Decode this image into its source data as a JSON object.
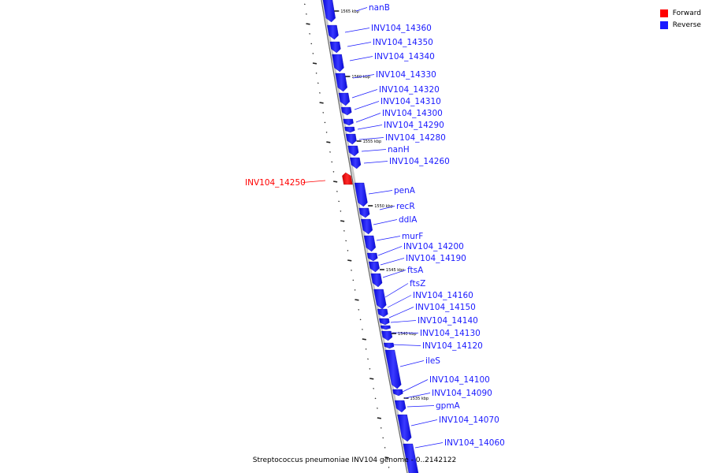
{
  "colors": {
    "forward": "#ff0000",
    "reverse": "#1a1aff",
    "backbone": "#8a8a8a"
  },
  "legend": [
    {
      "label": "Forward",
      "color": "#ff0000"
    },
    {
      "label": "Reverse",
      "color": "#1a1aff"
    }
  ],
  "caption": "Streptococcus pneumoniae INV104 genome - 0..2142122",
  "scale_ticks": [
    {
      "label": "1565 kbp"
    },
    {
      "label": "1560 kbp"
    },
    {
      "label": "1555 kbp"
    },
    {
      "label": "1550 kbp"
    },
    {
      "label": "1545 kbp"
    },
    {
      "label": "1540 kbp"
    },
    {
      "label": "1535 kbp"
    }
  ],
  "genes": [
    {
      "name": "nanB",
      "strand": "reverse"
    },
    {
      "name": "INV104_14360",
      "strand": "reverse"
    },
    {
      "name": "INV104_14350",
      "strand": "reverse"
    },
    {
      "name": "INV104_14340",
      "strand": "reverse"
    },
    {
      "name": "INV104_14330",
      "strand": "reverse"
    },
    {
      "name": "INV104_14320",
      "strand": "reverse"
    },
    {
      "name": "INV104_14310",
      "strand": "reverse"
    },
    {
      "name": "INV104_14300",
      "strand": "reverse"
    },
    {
      "name": "INV104_14290",
      "strand": "reverse"
    },
    {
      "name": "INV104_14280",
      "strand": "reverse"
    },
    {
      "name": "nanH",
      "strand": "reverse"
    },
    {
      "name": "INV104_14260",
      "strand": "reverse"
    },
    {
      "name": "INV104_14250",
      "strand": "forward"
    },
    {
      "name": "penA",
      "strand": "reverse"
    },
    {
      "name": "recR",
      "strand": "reverse"
    },
    {
      "name": "ddlA",
      "strand": "reverse"
    },
    {
      "name": "murF",
      "strand": "reverse"
    },
    {
      "name": "INV104_14200",
      "strand": "reverse"
    },
    {
      "name": "INV104_14190",
      "strand": "reverse"
    },
    {
      "name": "ftsA",
      "strand": "reverse"
    },
    {
      "name": "ftsZ",
      "strand": "reverse"
    },
    {
      "name": "INV104_14160",
      "strand": "reverse"
    },
    {
      "name": "INV104_14150",
      "strand": "reverse"
    },
    {
      "name": "INV104_14140",
      "strand": "reverse"
    },
    {
      "name": "INV104_14130",
      "strand": "reverse"
    },
    {
      "name": "INV104_14120",
      "strand": "reverse"
    },
    {
      "name": "ileS",
      "strand": "reverse"
    },
    {
      "name": "INV104_14100",
      "strand": "reverse"
    },
    {
      "name": "INV104_14090",
      "strand": "reverse"
    },
    {
      "name": "gpmA",
      "strand": "reverse"
    },
    {
      "name": "INV104_14070",
      "strand": "reverse"
    },
    {
      "name": "INV104_14060",
      "strand": "reverse"
    }
  ]
}
